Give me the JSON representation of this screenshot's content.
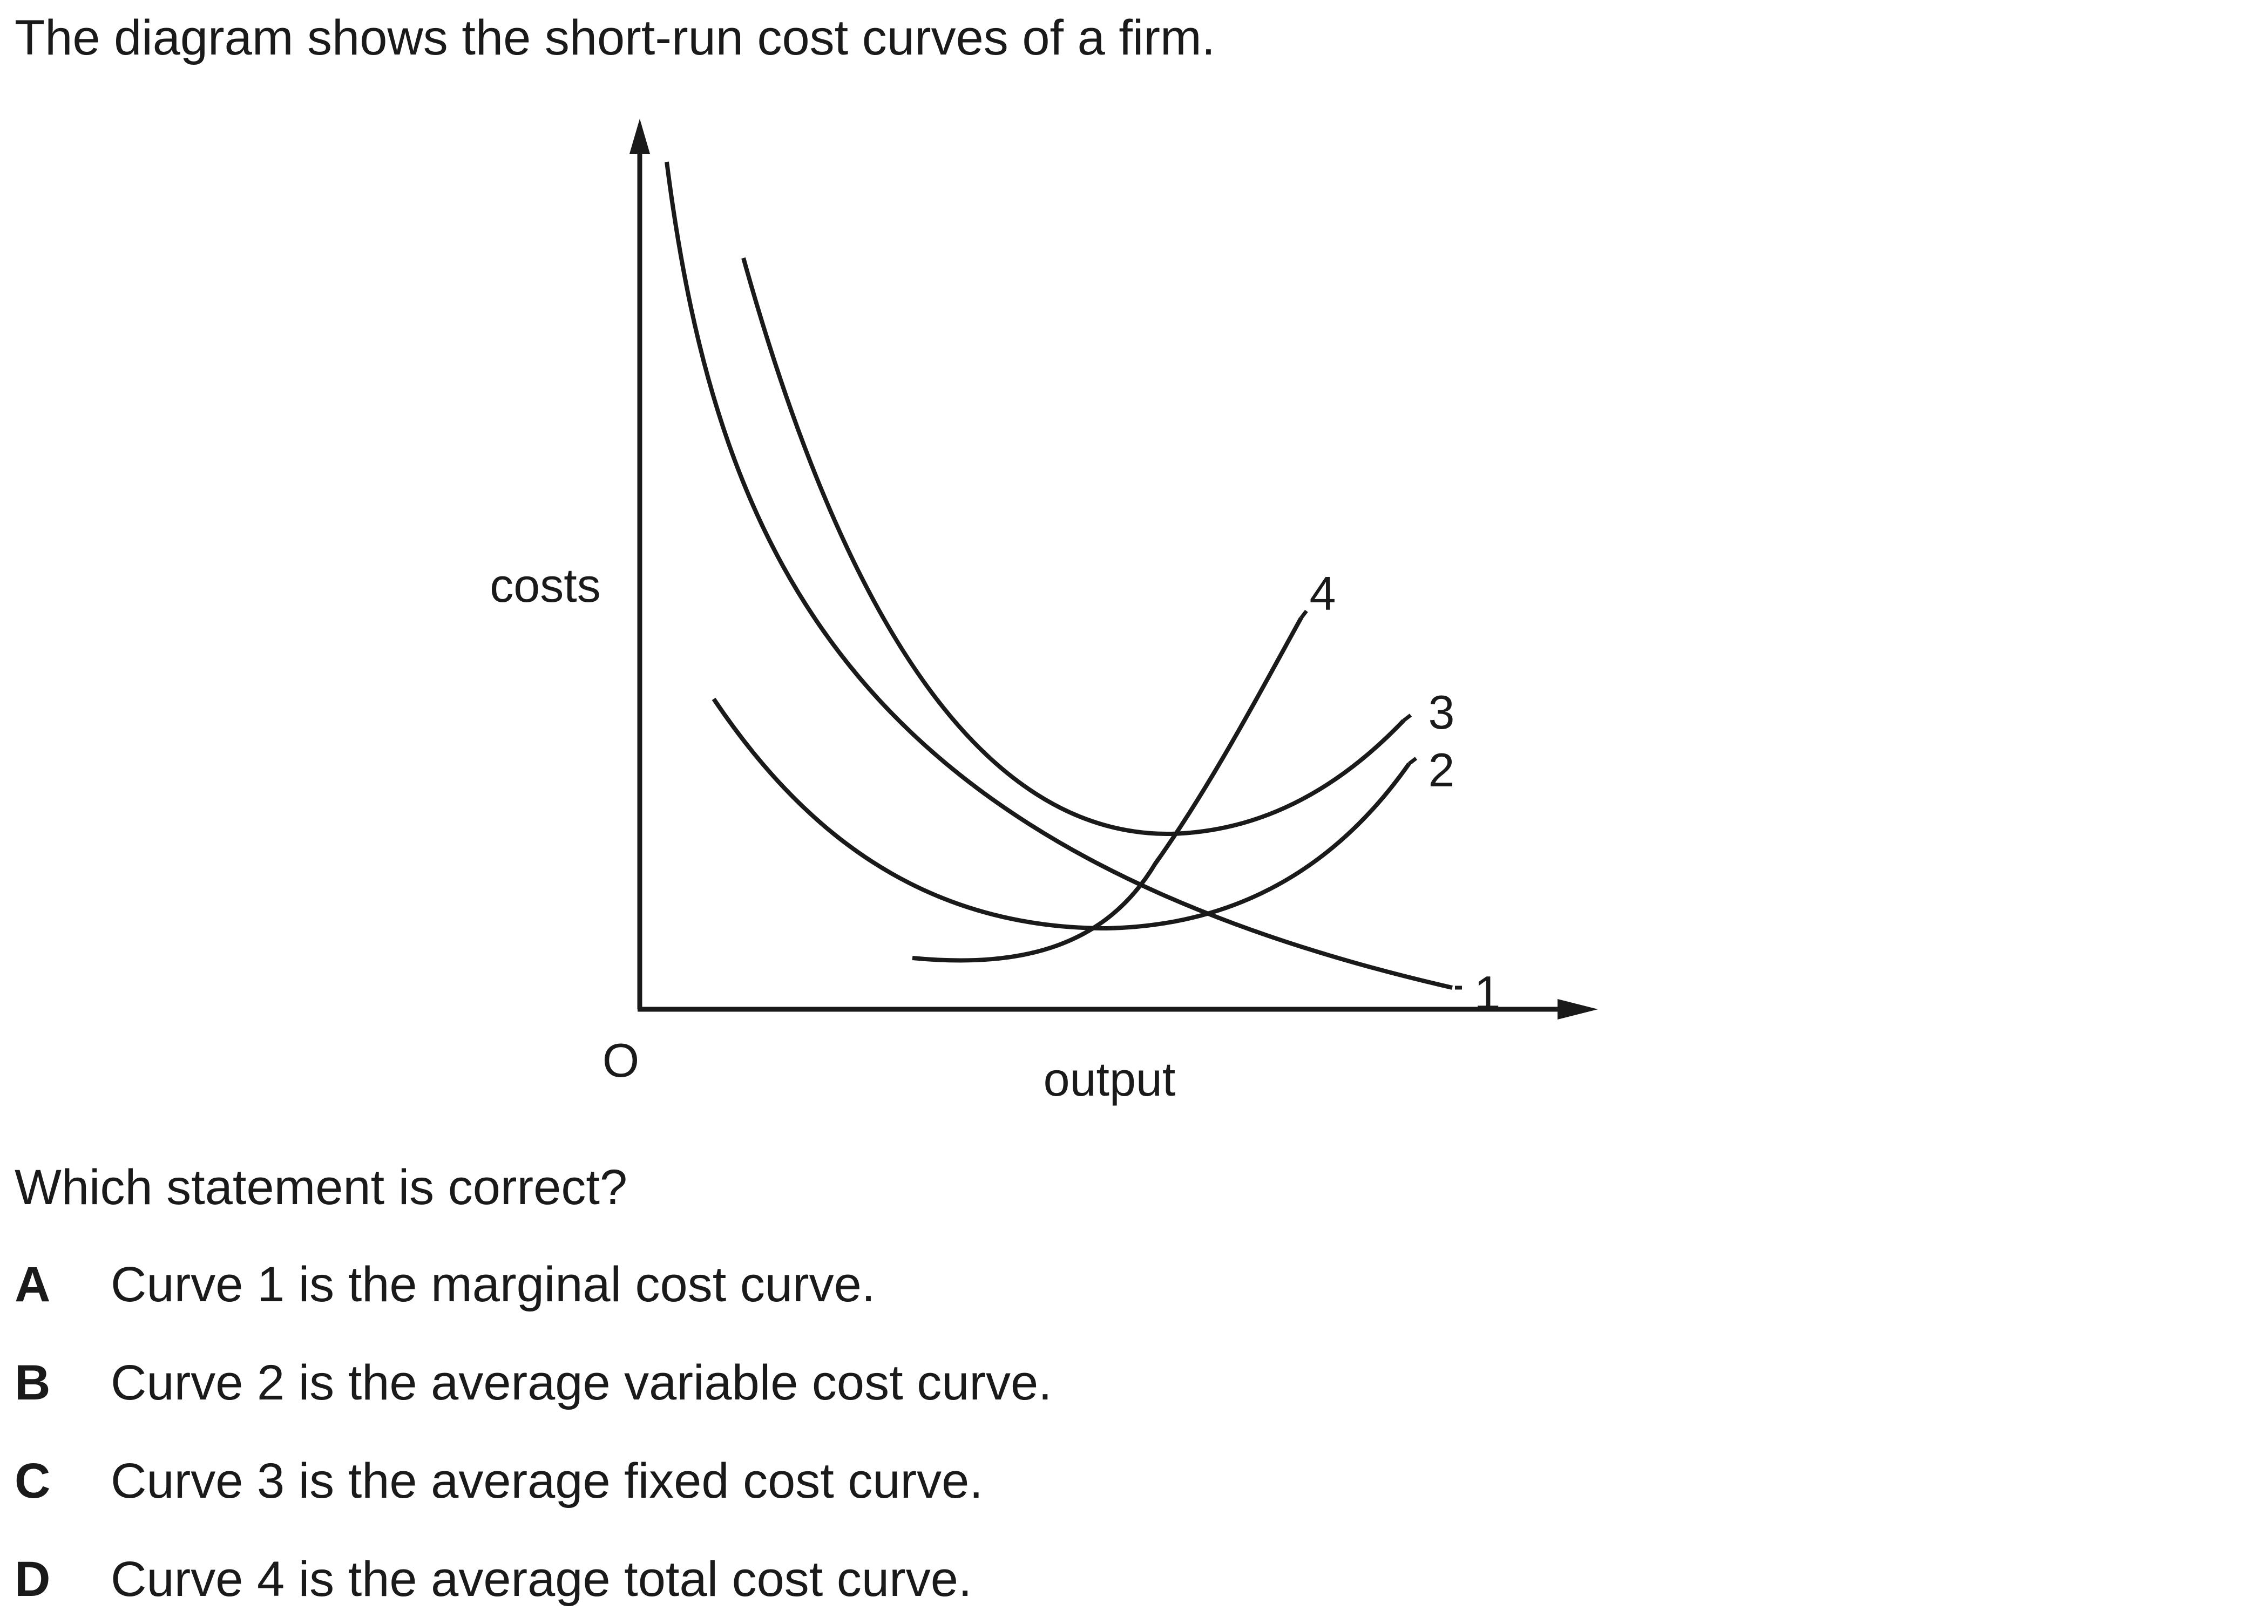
{
  "intro": "The diagram shows the short-run cost curves of a firm.",
  "diagram": {
    "y_axis_label": "costs",
    "x_axis_label": "output",
    "origin_label": "O",
    "curves": [
      {
        "id": "curve-1",
        "label": "1"
      },
      {
        "id": "curve-2",
        "label": "2"
      },
      {
        "id": "curve-3",
        "label": "3"
      },
      {
        "id": "curve-4",
        "label": "4"
      }
    ],
    "line_color": "#1a1a1a"
  },
  "question": "Which statement is correct?",
  "options": [
    {
      "letter": "A",
      "text": "Curve 1 is the marginal cost curve."
    },
    {
      "letter": "B",
      "text": "Curve 2 is the average variable cost curve."
    },
    {
      "letter": "C",
      "text": "Curve 3 is the average fixed cost curve."
    },
    {
      "letter": "D",
      "text": "Curve 4 is the average total cost curve."
    }
  ]
}
